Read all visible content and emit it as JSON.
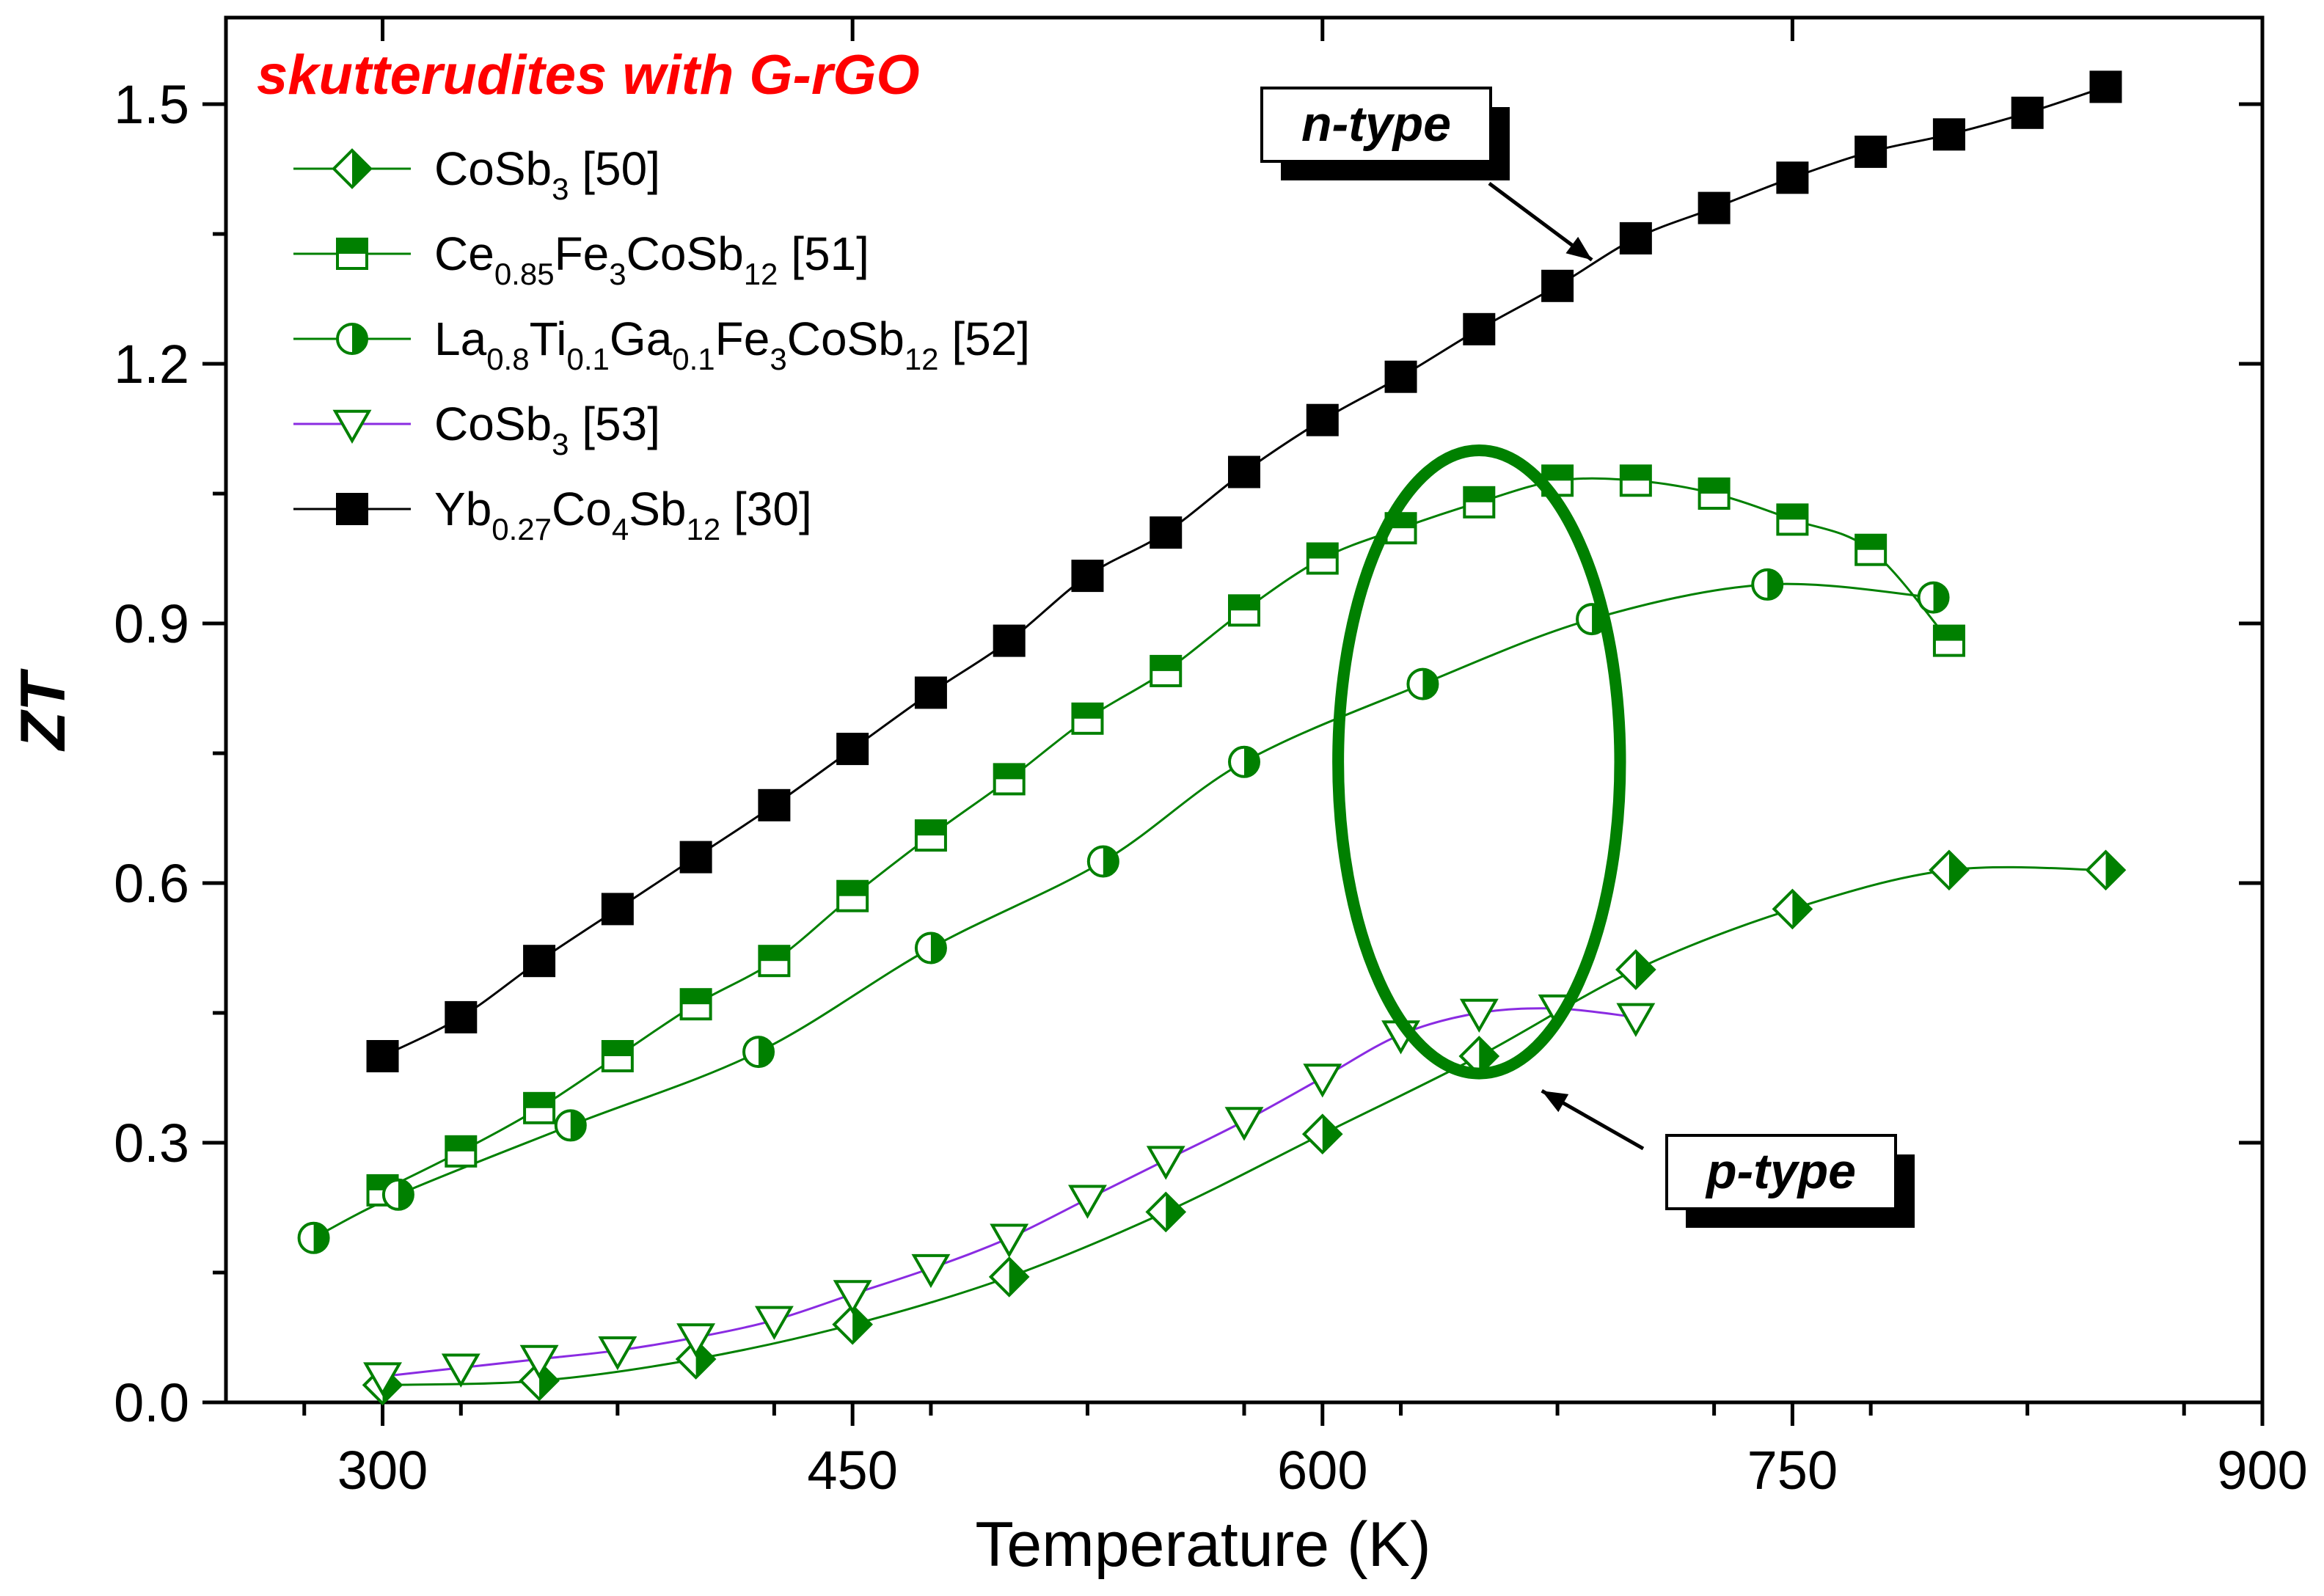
{
  "chart_data": {
    "type": "line",
    "title": "skutterudites with G-rGO",
    "xlabel": "Temperature (K)",
    "ylabel": "ZT",
    "xlim": [
      250,
      900
    ],
    "ylim": [
      0.0,
      1.6
    ],
    "x_ticks": [
      "300",
      "450",
      "600",
      "750",
      "900"
    ],
    "y_ticks": [
      "0.0",
      "0.3",
      "0.6",
      "0.9",
      "1.2",
      "1.5"
    ],
    "grid": false,
    "legend_position": "top-left",
    "series": [
      {
        "name": "CoSb3 [50]",
        "label_parts": [
          {
            "t": "CoSb"
          },
          {
            "t": "3",
            "sub": true
          },
          {
            "t": " [50]"
          }
        ],
        "marker": "half-diamond",
        "color": "#008000",
        "x": [
          300,
          350,
          400,
          450,
          500,
          550,
          600,
          650,
          700,
          750,
          800,
          850
        ],
        "y": [
          0.02,
          0.025,
          0.05,
          0.09,
          0.145,
          0.22,
          0.31,
          0.4,
          0.5,
          0.57,
          0.615,
          0.615
        ]
      },
      {
        "name": "Ce0.85Fe3CoSb12 [51]",
        "label_parts": [
          {
            "t": "Ce"
          },
          {
            "t": "0.85",
            "sub": true
          },
          {
            "t": "Fe"
          },
          {
            "t": "3",
            "sub": true
          },
          {
            "t": "CoSb"
          },
          {
            "t": "12",
            "sub": true
          },
          {
            "t": " [51]"
          }
        ],
        "marker": "half-square",
        "color": "#008000",
        "x": [
          300,
          325,
          350,
          375,
          400,
          425,
          450,
          475,
          500,
          525,
          550,
          575,
          600,
          625,
          650,
          675,
          700,
          725,
          750,
          775,
          800
        ],
        "y": [
          0.245,
          0.29,
          0.34,
          0.4,
          0.46,
          0.51,
          0.585,
          0.655,
          0.72,
          0.79,
          0.845,
          0.915,
          0.975,
          1.01,
          1.04,
          1.065,
          1.065,
          1.05,
          1.02,
          0.985,
          0.88
        ]
      },
      {
        "name": "La0.8Ti0.1Ga0.1Fe3CoSb12 [52]",
        "label_parts": [
          {
            "t": "La"
          },
          {
            "t": "0.8",
            "sub": true
          },
          {
            "t": "Ti"
          },
          {
            "t": "0.1",
            "sub": true
          },
          {
            "t": "Ga"
          },
          {
            "t": "0.1",
            "sub": true
          },
          {
            "t": "Fe"
          },
          {
            "t": "3",
            "sub": true
          },
          {
            "t": "CoSb"
          },
          {
            "t": "12",
            "sub": true
          },
          {
            "t": " [52]"
          }
        ],
        "marker": "half-circle",
        "color": "#008000",
        "x": [
          278,
          305,
          360,
          420,
          475,
          530,
          575,
          632,
          686,
          742,
          795
        ],
        "y": [
          0.19,
          0.24,
          0.32,
          0.405,
          0.525,
          0.625,
          0.74,
          0.83,
          0.905,
          0.945,
          0.93
        ]
      },
      {
        "name": "CoSb3 [53]",
        "label_parts": [
          {
            "t": "CoSb"
          },
          {
            "t": "3",
            "sub": true
          },
          {
            "t": " [53]"
          }
        ],
        "marker": "triangle-down",
        "color": "#008000",
        "line_color": "#8a2be2",
        "x": [
          300,
          325,
          350,
          375,
          400,
          425,
          450,
          475,
          500,
          525,
          550,
          575,
          600,
          625,
          650,
          675,
          700
        ],
        "y": [
          0.03,
          0.04,
          0.05,
          0.06,
          0.075,
          0.095,
          0.125,
          0.155,
          0.19,
          0.235,
          0.28,
          0.325,
          0.375,
          0.425,
          0.45,
          0.455,
          0.445
        ]
      },
      {
        "name": "Yb0.27Co4Sb12 [30]",
        "label_parts": [
          {
            "t": "Yb"
          },
          {
            "t": "0.27",
            "sub": true
          },
          {
            "t": "Co"
          },
          {
            "t": "4",
            "sub": true
          },
          {
            "t": "Sb"
          },
          {
            "t": "12",
            "sub": true
          },
          {
            "t": " [30]"
          }
        ],
        "marker": "square",
        "color": "#000000",
        "x": [
          300,
          325,
          350,
          375,
          400,
          425,
          450,
          475,
          500,
          525,
          550,
          575,
          600,
          625,
          650,
          675,
          700,
          725,
          750,
          775,
          800,
          825,
          850
        ],
        "y": [
          0.4,
          0.445,
          0.51,
          0.57,
          0.63,
          0.69,
          0.755,
          0.82,
          0.88,
          0.955,
          1.005,
          1.075,
          1.135,
          1.185,
          1.24,
          1.29,
          1.345,
          1.38,
          1.415,
          1.445,
          1.465,
          1.49,
          1.52
        ]
      }
    ],
    "annotations": [
      {
        "text": "n-type",
        "arrow_to": [
          686,
          1.32
        ]
      },
      {
        "text": "p-type",
        "arrow_to": [
          670,
          0.36
        ]
      }
    ],
    "highlight_ellipse": {
      "center": [
        650,
        0.74
      ],
      "rx": 45,
      "ry": 0.36
    }
  }
}
